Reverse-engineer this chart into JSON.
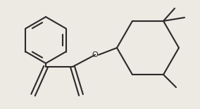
{
  "background": "#ede9e3",
  "line_color": "#2a2a2a",
  "line_width": 1.5,
  "figsize": [
    2.84,
    1.55
  ],
  "dpi": 100,
  "xlim": [
    0,
    284
  ],
  "ylim": [
    0,
    155
  ]
}
